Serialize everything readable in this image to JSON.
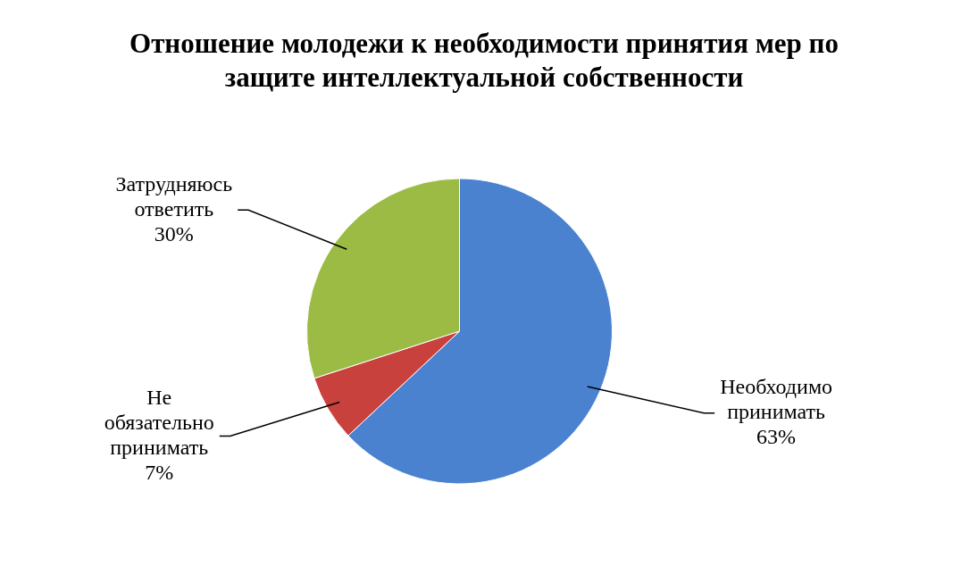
{
  "chart_data": {
    "type": "pie",
    "title": "Отношение молодежи к необходимости принятия мер по защите интеллектуальной собственности",
    "categories": [
      "Необходимо принимать",
      "Не обязательно принимать",
      "Затрудняюсь ответить"
    ],
    "values": [
      63,
      7,
      30
    ],
    "value_labels": [
      "63%",
      "7%",
      "30%"
    ],
    "colors": [
      "#4a82d0",
      "#c9413d",
      "#9bbb45"
    ],
    "legend": false
  }
}
